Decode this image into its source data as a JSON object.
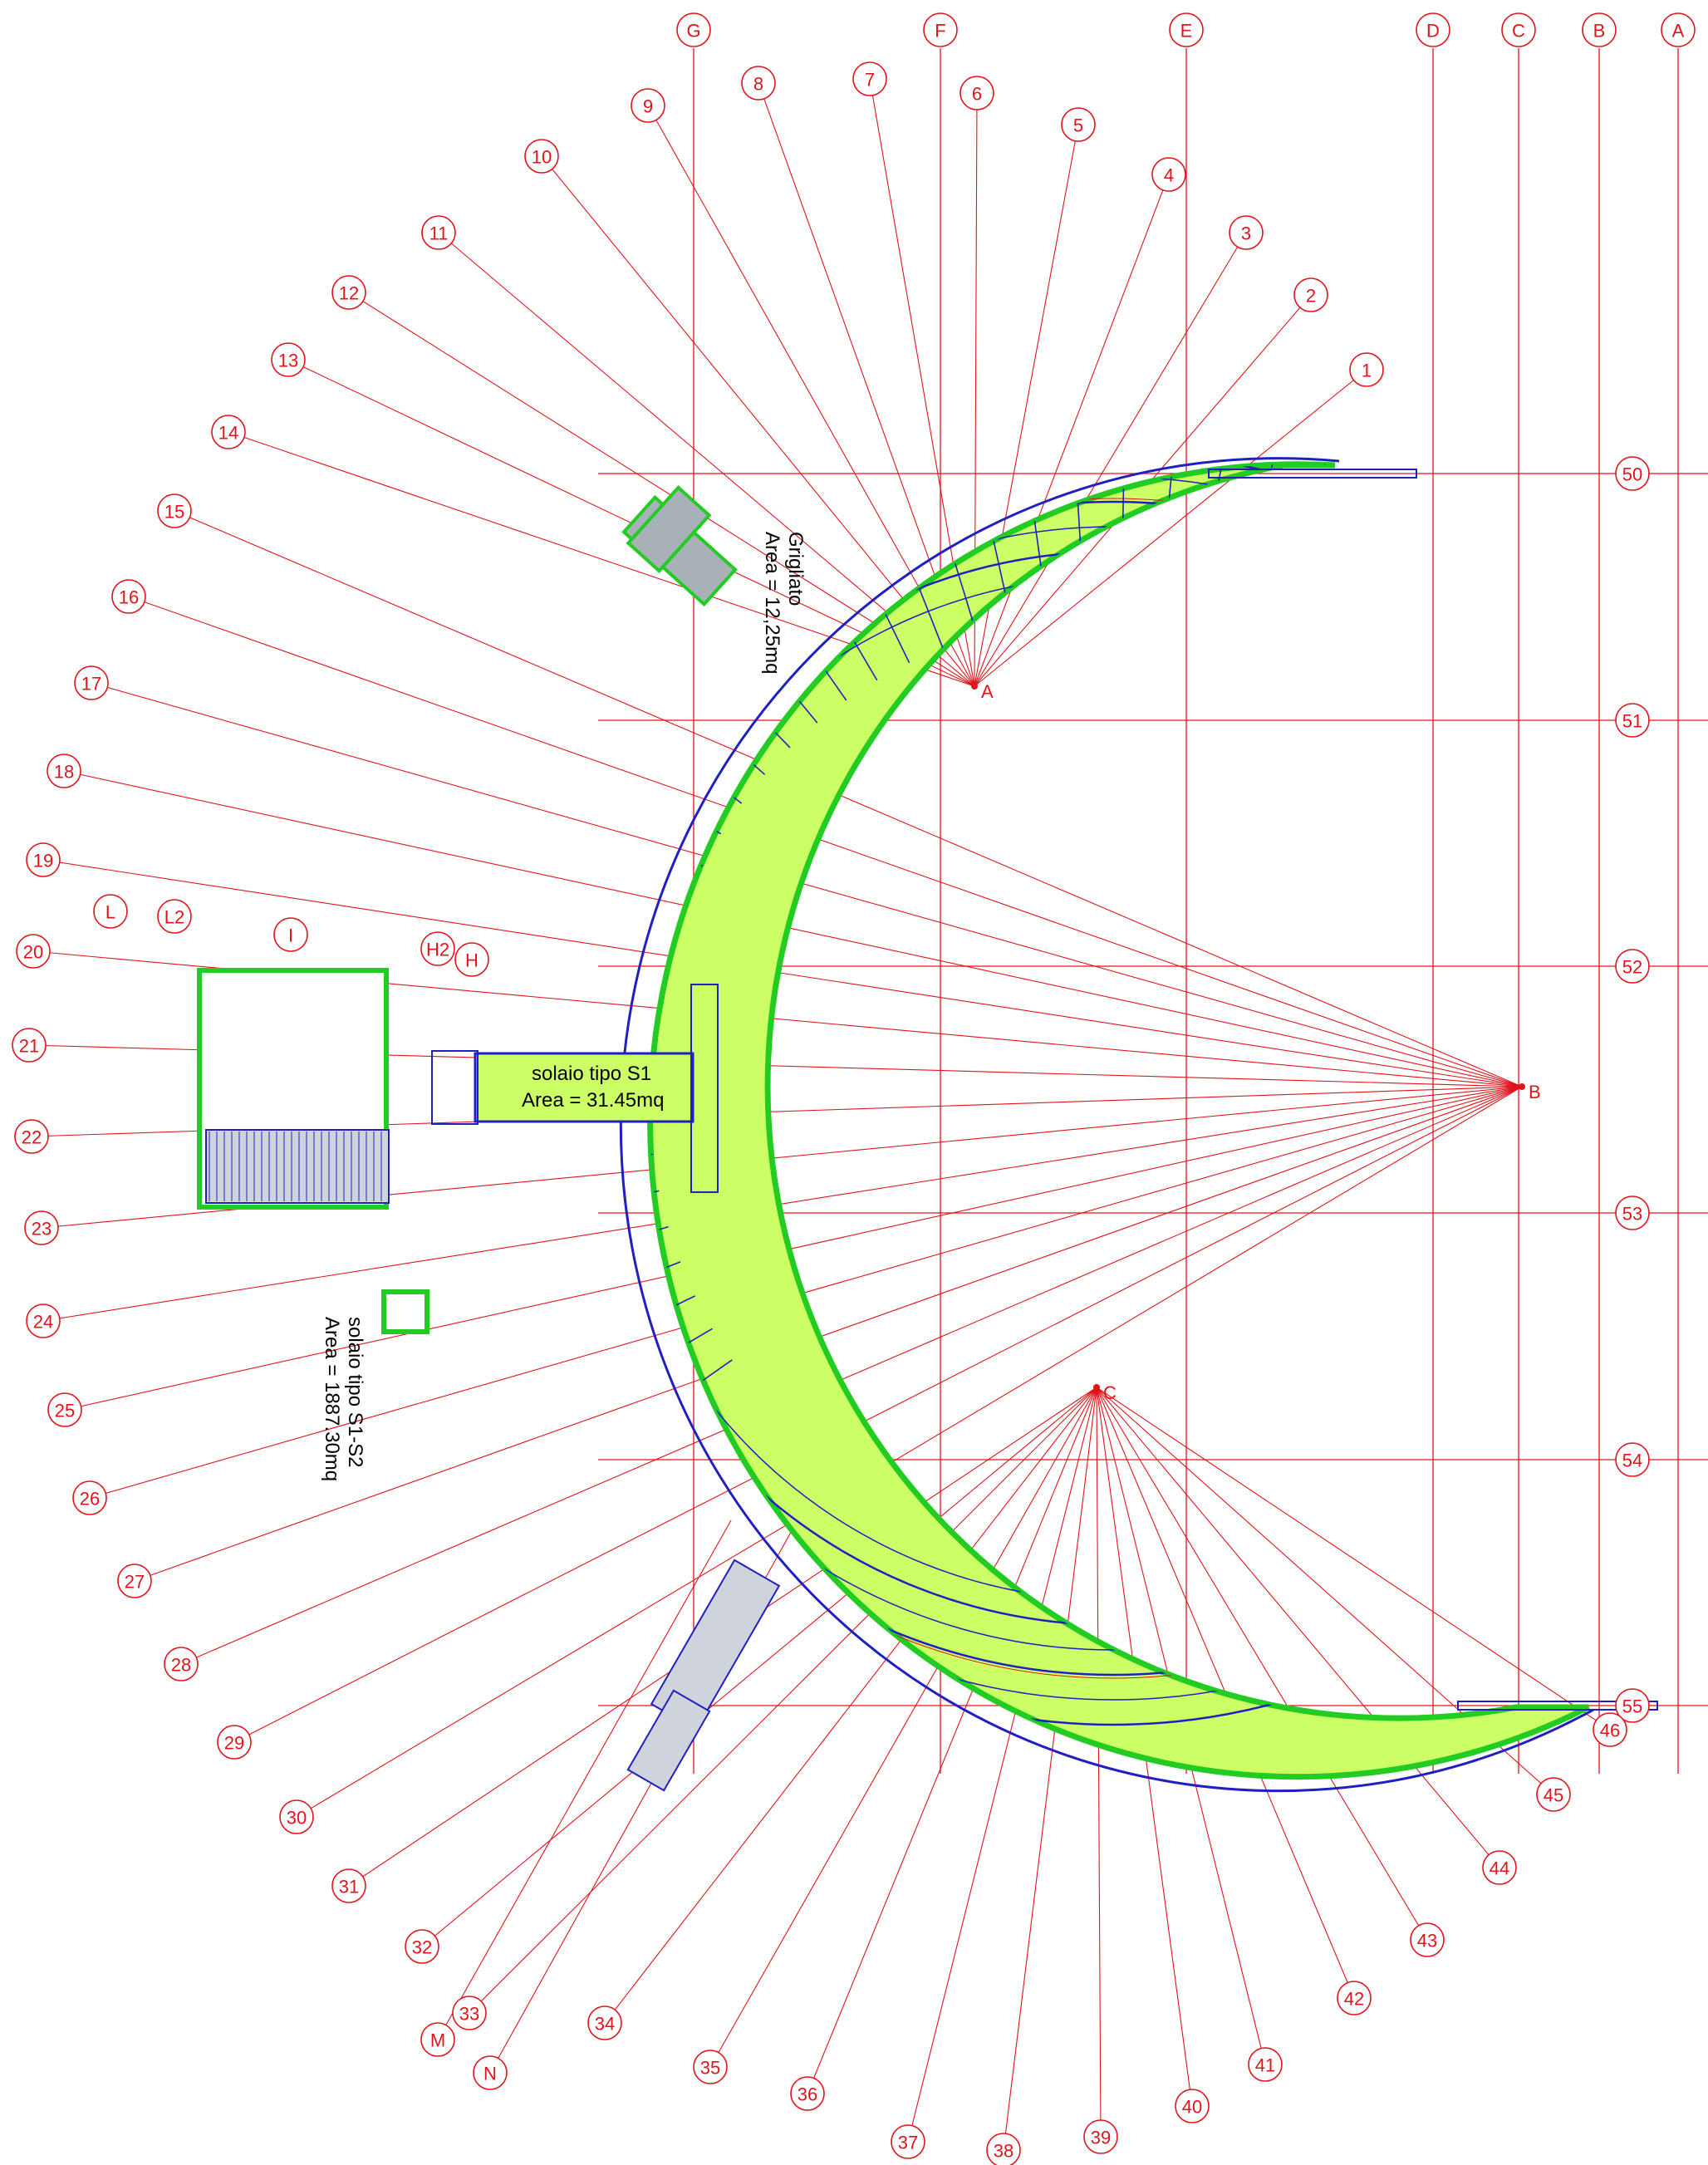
{
  "drawing": {
    "grid_letters": [
      "A",
      "B",
      "C",
      "D",
      "E",
      "F",
      "G"
    ],
    "grid_rows": [
      "50",
      "51",
      "52",
      "53",
      "54",
      "55"
    ],
    "radial_lines": [
      "1",
      "2",
      "3",
      "4",
      "5",
      "6",
      "7",
      "8",
      "9",
      "10",
      "11",
      "12",
      "13",
      "14",
      "15",
      "16",
      "17",
      "18",
      "19",
      "20",
      "21",
      "22",
      "23",
      "24",
      "25",
      "26",
      "27",
      "28",
      "29",
      "30",
      "31",
      "32",
      "33",
      "34",
      "35",
      "36",
      "37",
      "38",
      "39",
      "40",
      "41",
      "42",
      "43",
      "44",
      "45",
      "46"
    ],
    "extra_axes": [
      "M",
      "N"
    ],
    "ring_labels": [
      "L",
      "L2",
      "I",
      "H2",
      "H"
    ],
    "centers": [
      "A",
      "B",
      "C"
    ],
    "annotations": {
      "grigliato": {
        "title": "Grigliato",
        "area": "Area = 12,25mq"
      },
      "solaio_s1": {
        "title": "solaio tipo S1",
        "area": "Area = 31.45mq"
      },
      "solaio_s1s2": {
        "title": "solaio tipo S1-S2",
        "area": "Area = 1887.30mq"
      }
    },
    "colors": {
      "grid_red": "#e0141b",
      "slab_green": "#ccff66",
      "edge_green": "#22cc22",
      "beam_blue": "#2020c0",
      "void_cyan": "#66ffdd"
    }
  }
}
